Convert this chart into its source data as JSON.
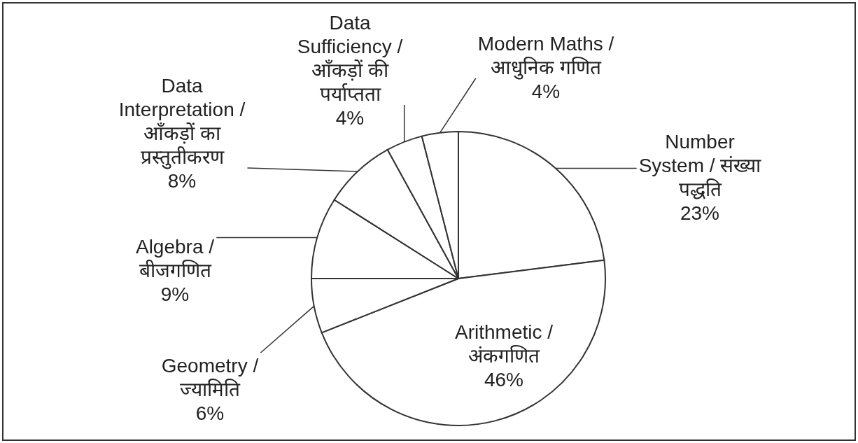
{
  "chart_data": {
    "type": "pie",
    "categories": [
      "Number System / संख्या पद्धति",
      "Arithmetic / अंकगणित",
      "Geometry / ज्यामिति",
      "Algebra / बीजगणित",
      "Data Interpretation / आँकड़ों का प्रस्तुतीकरण",
      "Data Sufficiency / आँकड़ों की पर्याप्तता",
      "Modern Maths / आधुनिक गणित"
    ],
    "values": [
      23,
      46,
      6,
      9,
      8,
      4,
      4
    ],
    "colors": [
      "#ffffff",
      "#ffffff",
      "#ffffff",
      "#ffffff",
      "#ffffff",
      "#ffffff",
      "#ffffff"
    ],
    "value_labels": [
      "23%",
      "46%",
      "6%",
      "9%",
      "8%",
      "4%",
      "4%"
    ]
  }
}
